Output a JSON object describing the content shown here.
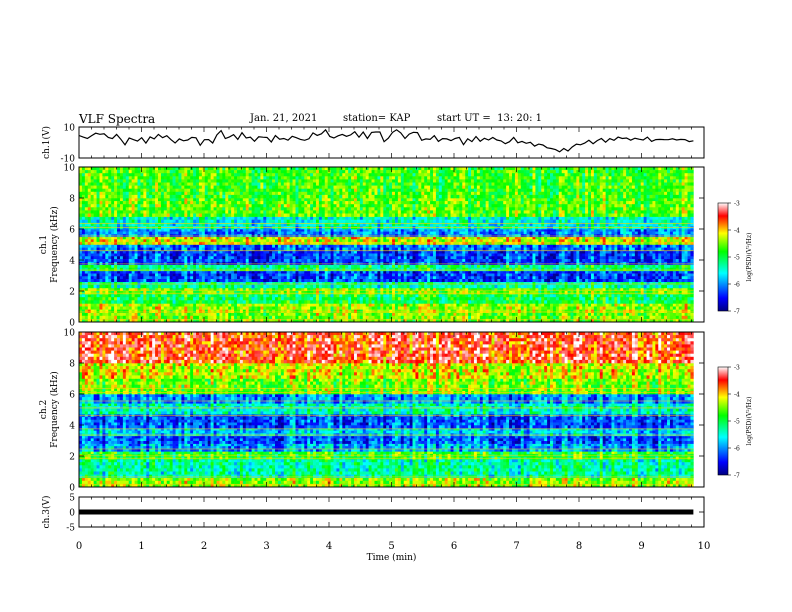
{
  "header": {
    "title": "VLF Spectra",
    "date": "Jan. 21, 2021",
    "station": "station= KAP",
    "start": "start UT =  13: 20: 1"
  },
  "chart_data": [
    {
      "type": "line",
      "name": "ch1-waveform",
      "ylabel": "ch.1(V)",
      "ylim": [
        -10,
        10
      ],
      "yticks": [
        "10",
        "-10"
      ],
      "xlim": [
        0,
        10
      ],
      "x_end": 9.83,
      "values": [
        4.5,
        3.5,
        2.6,
        4.4,
        6.0,
        5.3,
        5.6,
        3.2,
        2.5,
        5.2,
        2.1,
        -1.5,
        2.9,
        1.9,
        0.9,
        3.1,
        -0.4,
        3.6,
        2.3,
        5.2,
        3.1,
        4.4,
        1.9,
        -0.3,
        2.3,
        1.1,
        1.6,
        3.3,
        3.0,
        -1.8,
        1.8,
        1.9,
        -0.3,
        5.0,
        7.7,
        2.6,
        3.6,
        5.1,
        2.0,
        6.3,
        2.9,
        3.4,
        0.8,
        3.7,
        3.4,
        3.2,
        0.3,
        4.5,
        2.1,
        2.6,
        1.5,
        4.0,
        3.1,
        2.0,
        1.4,
        2.4,
        6.2,
        4.6,
        5.6,
        8.2,
        3.9,
        2.9,
        4.3,
        5.2,
        4.0,
        4.9,
        7.0,
        3.4,
        6.8,
        2.6,
        6.5,
        6.8,
        6.8,
        0.5,
        2.8,
        6.5,
        8.2,
        6.2,
        2.6,
        5.4,
        6.6,
        6.4,
        1.4,
        2.3,
        2.0,
        4.4,
        0.7,
        2.5,
        2.3,
        1.2,
        2.6,
        3.3,
        -1.4,
        2.4,
        0.6,
        3.9,
        0.8,
        2.7,
        1.6,
        3.2,
        1.6,
        1.0,
        -0.8,
        0.5,
        3.3,
        -0.2,
        0.7,
        -0.5,
        0.1,
        -2.3,
        -1.0,
        -1.6,
        -3.4,
        -3.9,
        -4.6,
        -6.0,
        -3.9,
        -5.5,
        -2.9,
        -1.0,
        -1.5,
        -0.4,
        1.4,
        -0.8,
        1.2,
        2.6,
        0.2,
        2.5,
        1.4,
        3.5,
        2.6,
        2.9,
        1.5,
        2.8,
        2.1,
        1.6,
        3.5,
        0.7,
        1.9,
        2.0,
        1.9,
        1.8,
        2.4,
        1.6,
        2.0,
        1.9,
        0.6,
        1.1
      ],
      "line_color": "#000000"
    },
    {
      "type": "heatmap",
      "name": "ch1-spectrogram",
      "ylabel": "Frequency (kHz)",
      "channel_label": "ch.1",
      "ylim": [
        0,
        10
      ],
      "yticks": [
        "0",
        "2",
        "4",
        "6",
        "8",
        "10"
      ],
      "xlim": [
        0,
        10
      ],
      "colorbar": {
        "label": "log(PSD)(V²/Hz)",
        "min": -7,
        "max": -3,
        "ticks": [
          "-3",
          "-4",
          "-5",
          "-6",
          "-7"
        ]
      },
      "bands_khz": [
        [
          0,
          0.6,
          -4.5
        ],
        [
          0.6,
          1.2,
          -4.4
        ],
        [
          1.2,
          1.8,
          -5.0
        ],
        [
          1.8,
          2.2,
          -4.6
        ],
        [
          2.2,
          2.6,
          -5.3
        ],
        [
          2.6,
          3.3,
          -6.3
        ],
        [
          3.3,
          3.7,
          -5.1
        ],
        [
          3.7,
          4.6,
          -6.3
        ],
        [
          4.6,
          5.0,
          -6.1
        ],
        [
          5.0,
          5.5,
          -4.2
        ],
        [
          5.5,
          6.0,
          -6.0
        ],
        [
          6.0,
          6.8,
          -5.5
        ],
        [
          6.8,
          8.0,
          -4.6
        ],
        [
          8.0,
          10.0,
          -4.7
        ]
      ]
    },
    {
      "type": "heatmap",
      "name": "ch2-spectrogram",
      "ylabel": "Frequency (kHz)",
      "channel_label": "ch.2",
      "ylim": [
        0,
        10
      ],
      "yticks": [
        "0",
        "2",
        "4",
        "6",
        "8",
        "10"
      ],
      "xlim": [
        0,
        10
      ],
      "colorbar": {
        "label": "log(PSD)(V²/Hz)",
        "min": -7,
        "max": -3,
        "ticks": [
          "-3",
          "-4",
          "-5",
          "-6",
          "-7"
        ]
      },
      "bands_khz": [
        [
          0,
          0.6,
          -4.4
        ],
        [
          0.6,
          1.8,
          -5.3
        ],
        [
          1.8,
          2.3,
          -4.8
        ],
        [
          2.3,
          2.8,
          -5.9
        ],
        [
          2.8,
          3.3,
          -6.2
        ],
        [
          3.3,
          3.8,
          -5.7
        ],
        [
          3.8,
          4.7,
          -6.2
        ],
        [
          4.7,
          5.4,
          -5.4
        ],
        [
          5.4,
          6.0,
          -6.0
        ],
        [
          6.0,
          7.0,
          -4.5
        ],
        [
          7.0,
          8.0,
          -4.2
        ],
        [
          8.0,
          10.0,
          -3.5
        ]
      ]
    },
    {
      "type": "line",
      "name": "ch3-waveform",
      "ylabel": "ch.3(V)",
      "ylim": [
        -5,
        5
      ],
      "yticks": [
        "5",
        "0",
        "-5"
      ],
      "xlim": [
        0,
        10
      ],
      "x_end": 9.83,
      "level": 0,
      "line_color": "#000000"
    }
  ],
  "xaxis": {
    "label": "Time (min)",
    "ticks": [
      "0",
      "1",
      "2",
      "3",
      "4",
      "5",
      "6",
      "7",
      "8",
      "9",
      "10"
    ]
  }
}
